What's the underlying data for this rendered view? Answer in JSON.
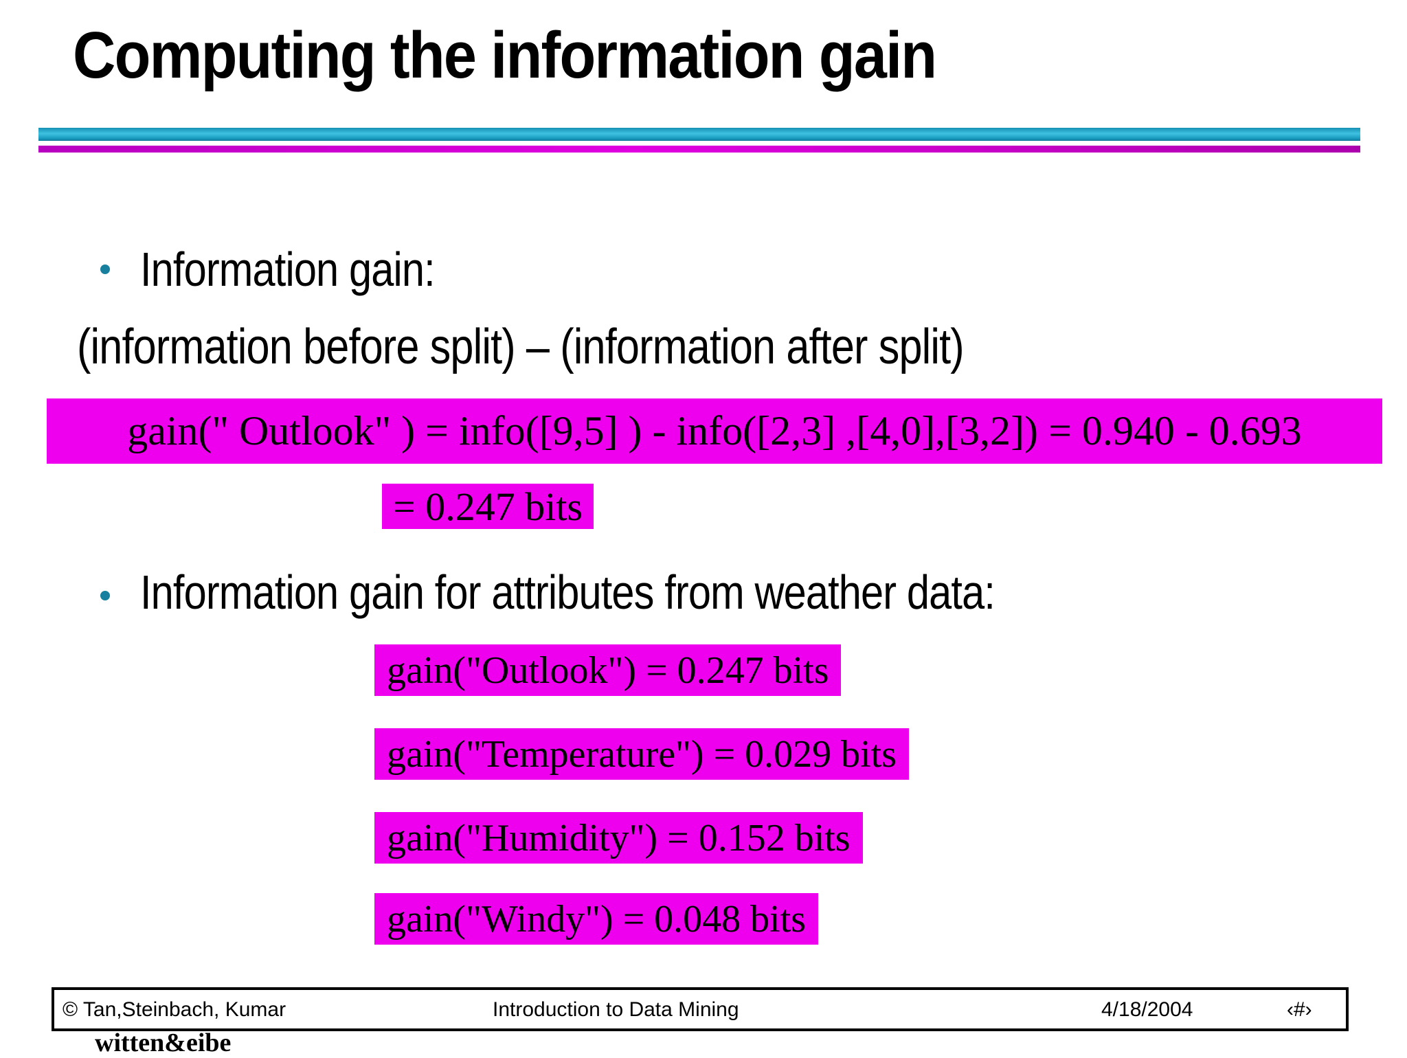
{
  "slide": {
    "title": "Computing the information gain",
    "bullet1": "Information gain:",
    "line2": "(information before split) – (information after split)",
    "formula_main": "gain(\" Outlook\" ) = info([9,5] ) - info([2,3] ,[4,0],[3,2]) = 0.940 - 0.693",
    "formula_result": "= 0.247 bits",
    "bullet2": "Information gain for attributes from weather data:",
    "gains": [
      "gain(\"Outlook\") = 0.247 bits",
      "gain(\"Temperature\") = 0.029 bits",
      "gain(\"Humidity\") = 0.152 bits",
      "gain(\"Windy\") = 0.048 bits"
    ]
  },
  "footer": {
    "copyright": "© Tan,Steinbach, Kumar",
    "center": "Introduction to Data Mining",
    "date": "4/18/2004",
    "page_placeholder": "‹#›",
    "attribution": "witten&eibe"
  },
  "colors": {
    "highlight_magenta": "#ee00ee",
    "rule_cyan": "#1a9cc0",
    "rule_purple": "#c000c0",
    "bullet_teal": "#17809e"
  }
}
